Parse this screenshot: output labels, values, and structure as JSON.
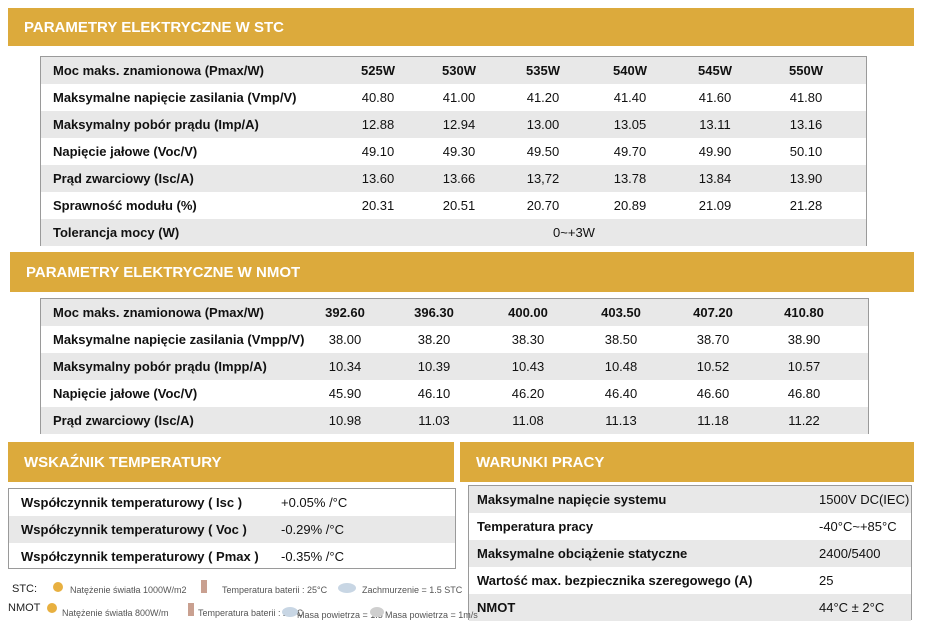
{
  "stc": {
    "title": "PARAMETRY ELEKTRYCZNE W STC",
    "rows": [
      [
        "Moc maks. znamionowa (Pmax/W)",
        "525W",
        "530W",
        "535W",
        "540W",
        "545W",
        "550W"
      ],
      [
        "Maksymalne napięcie zasilania (Vmp/V)",
        "40.80",
        "41.00",
        "41.20",
        "41.40",
        "41.60",
        "41.80"
      ],
      [
        "Maksymalny pobór prądu (Imp/A)",
        "12.88",
        "12.94",
        "13.00",
        "13.05",
        "13.11",
        "13.16"
      ],
      [
        "Napięcie jałowe (Voc/V)",
        "49.10",
        "49.30",
        "49.50",
        "49.70",
        "49.90",
        "50.10"
      ],
      [
        "Prąd zwarciowy (Isc/A)",
        "13.60",
        "13.66",
        "13,72",
        "13.78",
        "13.84",
        "13.90"
      ],
      [
        "Sprawność modułu (%)",
        "20.31",
        "20.51",
        "20.70",
        "20.89",
        "21.09",
        "21.28"
      ],
      [
        "Tolerancja mocy (W)",
        "0~+3W"
      ]
    ]
  },
  "nmot": {
    "title": "PARAMETRY ELEKTRYCZNE W NMOT",
    "rows": [
      [
        "Moc maks. znamionowa (Pmax/W)",
        "392.60",
        "396.30",
        "400.00",
        "403.50",
        "407.20",
        "410.80"
      ],
      [
        "Maksymalne napięcie zasilania (Vmpp/V)",
        "38.00",
        "38.20",
        "38.30",
        "38.50",
        "38.70",
        "38.90"
      ],
      [
        "Maksymalny pobór prądu (Impp/A)",
        "10.34",
        "10.39",
        "10.43",
        "10.48",
        "10.52",
        "10.57"
      ],
      [
        "Napięcie jałowe (Voc/V)",
        "45.90",
        "46.10",
        "46.20",
        "46.40",
        "46.60",
        "46.80"
      ],
      [
        "Prąd zwarciowy (Isc/A)",
        "10.98",
        "11.03",
        "11.08",
        "11.13",
        "11.18",
        "11.22"
      ]
    ]
  },
  "temperature": {
    "title": "WSKAŹNIK TEMPERATURY",
    "rows": [
      [
        "Współczynnik temperaturowy ( Isc )",
        "+0.05% /°C"
      ],
      [
        "Współczynnik temperaturowy ( Voc )",
        "-0.29% /°C"
      ],
      [
        "Współczynnik temperaturowy ( Pmax )",
        "-0.35% /°C"
      ]
    ]
  },
  "conditions": {
    "title": "WARUNKI PRACY",
    "rows": [
      [
        "Maksymalne napięcie systemu",
        "1500V DC(IEC)"
      ],
      [
        "Temperatura pracy",
        "-40°C~+85°C"
      ],
      [
        "Maksymalne obciążenie statyczne",
        "2400/5400"
      ],
      [
        "Wartość max. bezpiecznika szeregowego (A)",
        "25"
      ],
      [
        "NMOT",
        "44°C ± 2°C"
      ]
    ]
  },
  "legend": {
    "stc": {
      "label": "STC:",
      "items": [
        "Natężenie światła 1000W/m2",
        "Temperatura baterii : 25°C",
        "Zachmurzenie = 1.5 STC"
      ]
    },
    "nmot": {
      "label": "NMOT",
      "items": [
        "Natężenie światła 800W/m",
        "Temperatura baterii : 20°C",
        "Masa powietrza = 1.5",
        "Masa powietrza = 1m/s"
      ]
    }
  }
}
